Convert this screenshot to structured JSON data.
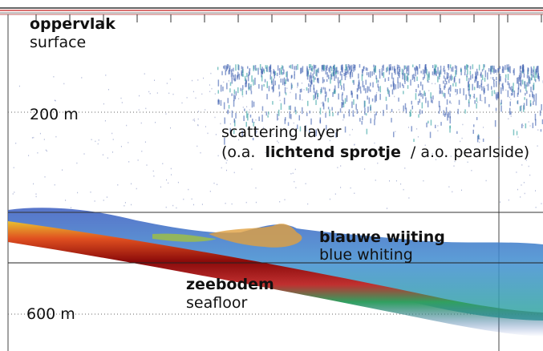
{
  "labels": {
    "surface_nl": "oppervlak",
    "surface_en": "surface",
    "depth_200": "200 m",
    "scattering_en": "scattering layer",
    "scattering_sub": {
      "prefix": "(o.a.",
      "bold": "lichtend sprotje",
      "suffix": "/ a.o. pearlside)"
    },
    "whiting_nl": "blauwe wijting",
    "whiting_en": "blue whiting",
    "seafloor_nl": "zeebodem",
    "seafloor_en": "seafloor",
    "depth_600": "600 m"
  }
}
